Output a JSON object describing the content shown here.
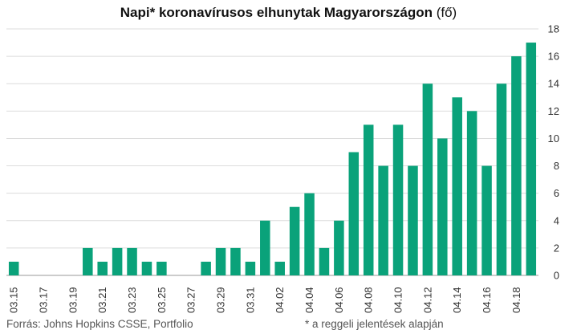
{
  "chart_data": {
    "type": "bar",
    "title": "Napi* koronavírusos elhunytak Magyarországon",
    "title_unit": "(fő)",
    "categories": [
      "03.15",
      "03.16",
      "03.17",
      "03.18",
      "03.19",
      "03.20",
      "03.21",
      "03.22",
      "03.23",
      "03.24",
      "03.25",
      "03.26",
      "03.27",
      "03.28",
      "03.29",
      "03.30",
      "03.31",
      "04.01",
      "04.02",
      "04.03",
      "04.04",
      "04.05",
      "04.06",
      "04.07",
      "04.08",
      "04.09",
      "04.10",
      "04.11",
      "04.12",
      "04.13",
      "04.14",
      "04.15",
      "04.16",
      "04.17",
      "04.18",
      "04.19"
    ],
    "x_tick_labels": [
      "03.15",
      "03.17",
      "03.19",
      "03.21",
      "03.23",
      "03.25",
      "03.27",
      "03.29",
      "03.31",
      "04.02",
      "04.04",
      "04.06",
      "04.08",
      "04.10",
      "04.12",
      "04.14",
      "04.16",
      "04.18"
    ],
    "values": [
      1,
      0,
      0,
      0,
      0,
      2,
      1,
      2,
      2,
      1,
      1,
      0,
      0,
      1,
      2,
      2,
      1,
      4,
      1,
      5,
      6,
      2,
      4,
      9,
      11,
      8,
      11,
      8,
      14,
      10,
      13,
      12,
      8,
      14,
      16,
      17
    ],
    "ylim": [
      0,
      18
    ],
    "yticks": [
      0,
      2,
      4,
      6,
      8,
      10,
      12,
      14,
      16,
      18
    ],
    "y_axis_side": "right",
    "grid": true,
    "bar_color": "#0aa27a",
    "xlabel": "",
    "ylabel": ""
  },
  "footer": {
    "source": "Forrás: Johns Hopkins CSSE, Portfolio",
    "note": "* a reggeli jelentések alapján"
  }
}
